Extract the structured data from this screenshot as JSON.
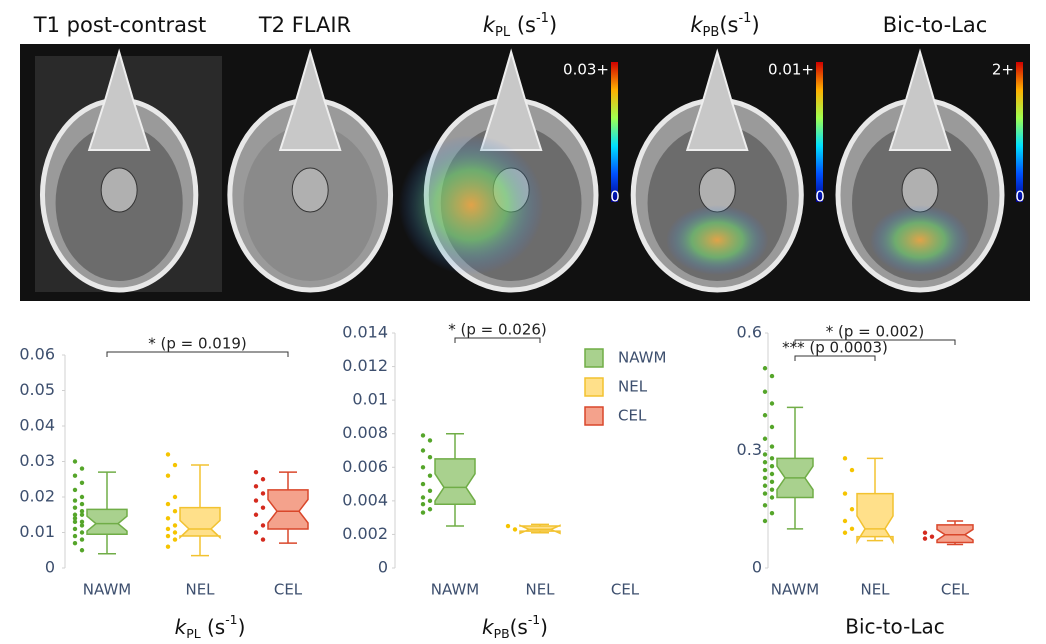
{
  "image_panels": [
    {
      "title": "T1 post-contrast"
    },
    {
      "title": "T2 FLAIR"
    },
    {
      "title": {
        "symbol": "k",
        "subscript": "PL",
        "unit": " (s",
        "exponent": "-1",
        "close": ")"
      },
      "colorbar": {
        "max_label": "0.03+",
        "min_label": "0"
      }
    },
    {
      "title": {
        "symbol": "k",
        "subscript": "PB",
        "unit": "(s",
        "exponent": "-1",
        "close": ")"
      },
      "colorbar": {
        "max_label": "0.01+",
        "min_label": "0"
      }
    },
    {
      "title": "Bic-to-Lac",
      "colorbar": {
        "max_label": "2+",
        "min_label": "0"
      }
    }
  ],
  "chart_data": [
    {
      "type": "box",
      "categories": [
        "NAWM",
        "NEL",
        "CEL"
      ],
      "colors": [
        "#70ad47",
        "#f2c230",
        "#d9472b"
      ],
      "point_colors": [
        "#55a52a",
        "#f5c400",
        "#d42a1e"
      ],
      "ylim": [
        0,
        0.06
      ],
      "yticks": [
        0,
        0.01,
        0.02,
        0.03,
        0.04,
        0.05,
        0.06
      ],
      "x_label": {
        "symbol": "k",
        "subscript": "PL",
        "unit": " (s",
        "exponent": "-1",
        "close": ")"
      },
      "boxes": [
        {
          "min": 0.004,
          "q1": 0.0095,
          "median": 0.0125,
          "q3": 0.0165,
          "max": 0.027
        },
        {
          "min": 0.0035,
          "q1": 0.009,
          "median": 0.011,
          "q3": 0.017,
          "max": 0.029
        },
        {
          "min": 0.007,
          "q1": 0.011,
          "median": 0.016,
          "q3": 0.022,
          "max": 0.027
        }
      ],
      "points": [
        [
          0.03,
          0.028,
          0.026,
          0.024,
          0.022,
          0.02,
          0.019,
          0.018,
          0.017,
          0.016,
          0.015,
          0.015,
          0.014,
          0.013,
          0.013,
          0.012,
          0.011,
          0.01,
          0.009,
          0.008,
          0.007,
          0.005
        ],
        [
          0.032,
          0.029,
          0.026,
          0.02,
          0.018,
          0.016,
          0.014,
          0.012,
          0.011,
          0.01,
          0.009,
          0.008,
          0.006
        ],
        [
          0.027,
          0.025,
          0.023,
          0.021,
          0.019,
          0.017,
          0.015,
          0.012,
          0.01,
          0.008
        ]
      ],
      "annotations": [
        {
          "text": "* (p = 0.019)",
          "between": [
            "NAWM",
            "CEL"
          ]
        }
      ]
    },
    {
      "type": "box",
      "categories": [
        "NAWM",
        "NEL",
        "CEL"
      ],
      "colors": [
        "#70ad47",
        "#f2c230",
        "#d9472b"
      ],
      "point_colors": [
        "#55a52a",
        "#f5c400",
        "#d42a1e"
      ],
      "ylim": [
        0,
        0.014
      ],
      "yticks": [
        0,
        0.002,
        0.004,
        0.006,
        0.008,
        0.01,
        0.012,
        0.014
      ],
      "x_label": {
        "symbol": "k",
        "subscript": "PB",
        "unit": "(s",
        "exponent": "-1",
        "close": ")"
      },
      "boxes": [
        {
          "min": 0.0025,
          "q1": 0.0038,
          "median": 0.0048,
          "q3": 0.0065,
          "max": 0.008
        },
        {
          "min": 0.0021,
          "q1": 0.0022,
          "median": 0.0023,
          "q3": 0.0025,
          "max": 0.0026
        },
        null
      ],
      "points": [
        [
          0.0079,
          0.0076,
          0.007,
          0.0066,
          0.006,
          0.0055,
          0.005,
          0.0046,
          0.0042,
          0.004,
          0.0038,
          0.0035,
          0.0033
        ],
        [
          0.0025,
          0.0023
        ],
        []
      ],
      "annotations": [
        {
          "text": "* (p = 0.026)",
          "between": [
            "NAWM",
            "NEL"
          ]
        }
      ],
      "legend": "upper right"
    },
    {
      "type": "box",
      "categories": [
        "NAWM",
        "NEL",
        "CEL"
      ],
      "colors": [
        "#70ad47",
        "#f2c230",
        "#d9472b"
      ],
      "point_colors": [
        "#55a52a",
        "#f5c400",
        "#d42a1e"
      ],
      "ylim": [
        0,
        0.6
      ],
      "yticks": [
        0,
        0.3,
        0.6
      ],
      "x_label": "Bic-to-Lac",
      "boxes": [
        {
          "min": 0.1,
          "q1": 0.18,
          "median": 0.23,
          "q3": 0.28,
          "max": 0.41
        },
        {
          "min": 0.07,
          "q1": 0.08,
          "median": 0.1,
          "q3": 0.19,
          "max": 0.28
        },
        {
          "min": 0.06,
          "q1": 0.065,
          "median": 0.085,
          "q3": 0.11,
          "max": 0.12
        }
      ],
      "points": [
        [
          0.51,
          0.49,
          0.45,
          0.42,
          0.39,
          0.36,
          0.33,
          0.31,
          0.29,
          0.28,
          0.27,
          0.26,
          0.25,
          0.24,
          0.23,
          0.22,
          0.21,
          0.2,
          0.19,
          0.18,
          0.16,
          0.14,
          0.12
        ],
        [
          0.28,
          0.25,
          0.19,
          0.15,
          0.12,
          0.1,
          0.09
        ],
        [
          0.09,
          0.08,
          0.075
        ]
      ],
      "annotations": [
        {
          "text": "* (p = 0.002)",
          "between": [
            "NAWM",
            "CEL"
          ]
        },
        {
          "text": "*** (p 0.0003)",
          "between": [
            "NAWM",
            "NEL"
          ]
        }
      ]
    }
  ]
}
